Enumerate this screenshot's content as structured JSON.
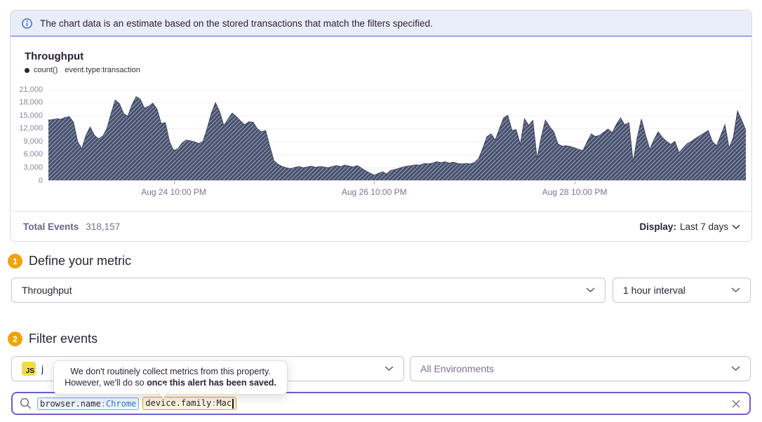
{
  "banner": {
    "text": "The chart data is an estimate based on the stored transactions that match the filters specified."
  },
  "chart": {
    "title": "Throughput",
    "legend_series": "count()",
    "legend_filter": "event.type:transaction"
  },
  "chart_data": {
    "type": "area",
    "title": "Throughput",
    "series_name": "count() event.type:transaction",
    "ylim": [
      0,
      21000
    ],
    "grid_step": 3000,
    "y_tick_labels": [
      "21,000",
      "18,000",
      "15,000",
      "12,000",
      "9,000",
      "6,000",
      "3,000",
      "0"
    ],
    "x_ticks": [
      {
        "label": "Aug 24 10:00 PM",
        "hour": 30
      },
      {
        "label": "Aug 26 10:00 PM",
        "hour": 78
      },
      {
        "label": "Aug 28 10:00 PM",
        "hour": 126
      }
    ],
    "hours_total": 167,
    "interval": "1 hour",
    "hatch_pattern": true,
    "colors": {
      "fill": "#46506e",
      "hatch": "#9aa1b5",
      "edge": "#3e4662",
      "grid": "#f0edf3",
      "axis": "#cfc7d8"
    },
    "values": [
      14000,
      14100,
      14300,
      14200,
      14600,
      14800,
      13500,
      9000,
      7400,
      10500,
      12400,
      10500,
      9700,
      10300,
      12000,
      15500,
      18600,
      17800,
      15500,
      14900,
      17500,
      19400,
      18800,
      16700,
      17200,
      17900,
      16500,
      13200,
      13400,
      9000,
      7000,
      7400,
      8700,
      9400,
      9200,
      9000,
      8600,
      9100,
      12000,
      15500,
      18000,
      16000,
      12700,
      14200,
      15600,
      14800,
      13800,
      12900,
      13600,
      13500,
      12000,
      11300,
      11600,
      8000,
      4600,
      3800,
      3300,
      3000,
      2800,
      3100,
      3300,
      3000,
      3200,
      3400,
      3100,
      3300,
      3200,
      3000,
      3300,
      3500,
      3300,
      3600,
      3400,
      3200,
      3500,
      2900,
      2300,
      1800,
      1300,
      1700,
      2100,
      1600,
      2400,
      2600,
      2900,
      3200,
      3400,
      3500,
      3700,
      3600,
      4000,
      3900,
      4100,
      4400,
      4200,
      4400,
      4100,
      4300,
      4000,
      3900,
      4000,
      3900,
      4200,
      5100,
      7500,
      10200,
      10800,
      9400,
      12000,
      14500,
      15100,
      11600,
      11800,
      8400,
      14300,
      12800,
      13900,
      5100,
      10000,
      14000,
      12500,
      11300,
      8500,
      8000,
      8100,
      7900,
      7600,
      7200,
      7000,
      9000,
      10800,
      10200,
      10500,
      11200,
      11900,
      11100,
      13000,
      14500,
      12900,
      13400,
      4300,
      10000,
      14200,
      10500,
      7300,
      9500,
      11300,
      10000,
      9100,
      8400,
      9100,
      6500,
      7600,
      8600,
      9100,
      9800,
      10400,
      11000,
      11600,
      9000,
      8100,
      10500,
      12900,
      7500,
      10000,
      16100,
      14000,
      11600
    ]
  },
  "footer": {
    "total_events_label": "Total Events",
    "total_events_value": "318,157",
    "display_label": "Display:",
    "display_value": "Last 7 days"
  },
  "step1": {
    "number": "1",
    "title": "Define your metric",
    "metric_select": "Throughput",
    "interval_select": "1 hour interval"
  },
  "step2": {
    "number": "2",
    "title": "Filter events",
    "project_icon": "JS",
    "project_label": "j",
    "environment_select": "All Environments"
  },
  "tooltip": {
    "line1": "We don't routinely collect metrics from this property.",
    "line2": "However, we'll do so ",
    "line2_bold": "once this alert has been saved."
  },
  "search": {
    "tokens": [
      {
        "key": "browser.name",
        "value": "Chrome"
      },
      {
        "key": "device.family",
        "value": "Mac"
      }
    ]
  },
  "colors": {
    "accent_purple": "#6d5ec8",
    "badge_orange": "#efa30b",
    "banner_border_blue": "#3e64d8",
    "token_blue": "#2c72c7",
    "token_warn_border": "#d9a616",
    "js_yellow": "#f0db4f"
  }
}
